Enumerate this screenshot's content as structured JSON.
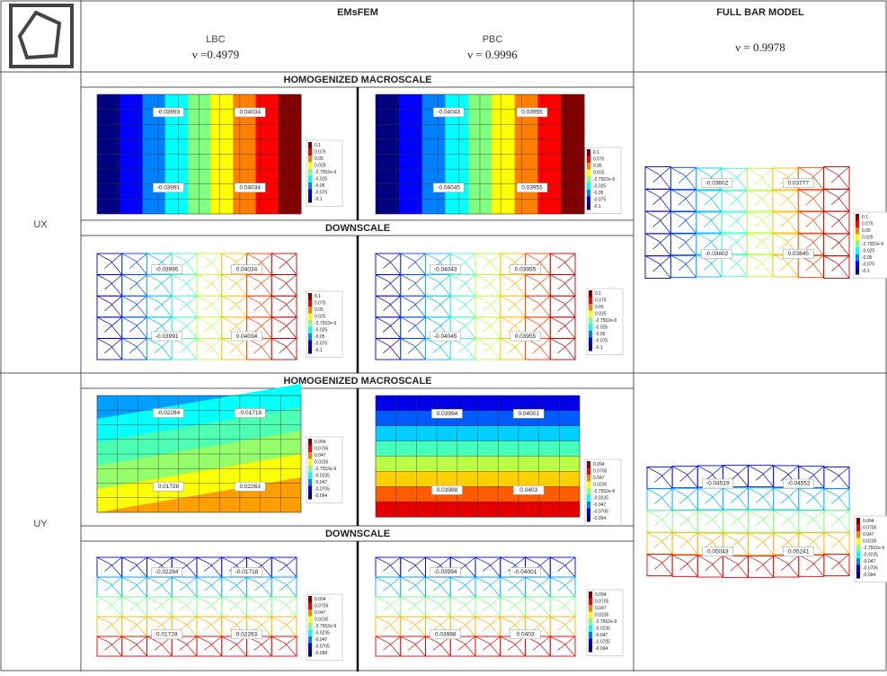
{
  "header": {
    "emsfem": "EMsFEM",
    "lbc": "LBC",
    "lbc_nu": "ν =0.4979",
    "pbc": "PBC",
    "pbc_nu": "ν = 0.9996",
    "full": "FULL BAR MODEL",
    "full_nu": "ν = 0.9978"
  },
  "legends": {
    "ux": [
      "0.1",
      "0.075",
      "0.05",
      "0.025",
      "-2.7552e-9",
      "-0.025",
      "-0.05",
      "-0.075",
      "-0.1"
    ],
    "uy": [
      "0.094",
      "0.0705",
      "0.047",
      "0.0235",
      "-2.7552e-9",
      "-0.0235",
      "-0.047",
      "-0.0705",
      "-0.094"
    ]
  },
  "rows": [
    {
      "label": "UX",
      "macro_title": "HOMOGENIZED MACROSCALE",
      "down_title": "DOWNSCALE",
      "macro_lbc": [
        "-0.03993",
        "0.04034",
        "-0.03991",
        "0.04034"
      ],
      "macro_pbc": [
        "-0.04043",
        "0.03955",
        "-0.04045",
        "0.03955"
      ],
      "down_lbc": [
        "-0.03995",
        "0.04034",
        "-0.03991",
        "0.04034"
      ],
      "down_pbc": [
        "-0.04043",
        "0.03955",
        "-0.04045",
        "0.03955"
      ],
      "full": [
        "-0.03602",
        "0.03777",
        "-0.03602",
        "0.03845"
      ]
    },
    {
      "label": "UY",
      "macro_title": "HOMOGENIZED MACROSCALE",
      "down_title": "DOWNSCALE",
      "macro_lbc": [
        "-0.02284",
        "-0.01718",
        "0.01728",
        "0.02263"
      ],
      "macro_pbc": [
        "0.03994",
        "0.04001",
        "0.03988",
        "0.0403"
      ],
      "down_lbc": [
        "-0.02284",
        "-0.01718",
        "0.01728",
        "0.02263"
      ],
      "down_pbc": [
        "-0.03994",
        "-0.04001",
        "0.03988",
        "0.0403"
      ],
      "full": [
        "-0.04519",
        "-0.04552",
        "0.05043",
        "0.05241"
      ]
    }
  ]
}
